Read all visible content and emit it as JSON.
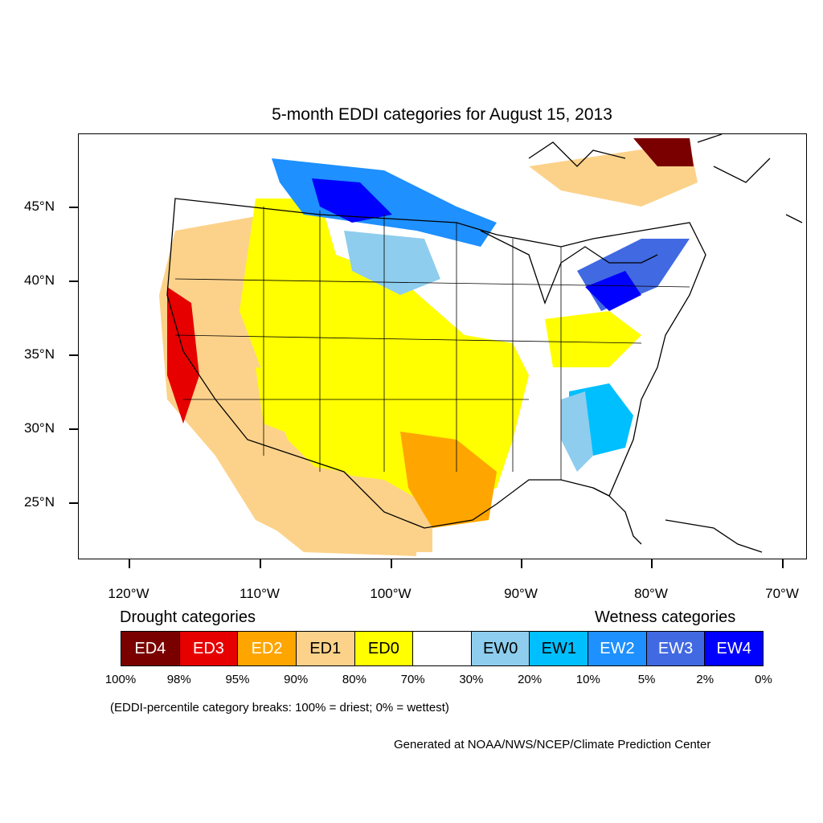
{
  "title": "5-month EDDI categories for August 15, 2013",
  "axes": {
    "lat_labels": [
      "45°N",
      "40°N",
      "35°N",
      "30°N",
      "25°N"
    ],
    "lon_labels": [
      "120°W",
      "110°W",
      "100°W",
      "90°W",
      "80°W",
      "70°W"
    ]
  },
  "legend": {
    "drought_header": "Drought categories",
    "wetness_header": "Wetness categories",
    "categories": [
      {
        "label": "ED4",
        "color": "#7a0000",
        "text_color": "#ffffff"
      },
      {
        "label": "ED3",
        "color": "#e60000",
        "text_color": "#ffffff"
      },
      {
        "label": "ED2",
        "color": "#ffa500",
        "text_color": "#ffffff"
      },
      {
        "label": "ED1",
        "color": "#fcd28a",
        "text_color": "#000000"
      },
      {
        "label": "ED0",
        "color": "#ffff00",
        "text_color": "#000000"
      },
      {
        "label": "",
        "color": "#ffffff",
        "text_color": "#000000"
      },
      {
        "label": "EW0",
        "color": "#8ecdee",
        "text_color": "#000000"
      },
      {
        "label": "EW1",
        "color": "#00bfff",
        "text_color": "#000000"
      },
      {
        "label": "EW2",
        "color": "#1e90ff",
        "text_color": "#ffffff"
      },
      {
        "label": "EW3",
        "color": "#4169e1",
        "text_color": "#ffffff"
      },
      {
        "label": "EW4",
        "color": "#0000ff",
        "text_color": "#ffffff"
      }
    ],
    "breaks": [
      "100%",
      "98%",
      "95%",
      "90%",
      "80%",
      "70%",
      "30%",
      "20%",
      "10%",
      "5%",
      "2%",
      "0%"
    ]
  },
  "note": "(EDDI-percentile category breaks: 100% = driest; 0% = wettest)",
  "credit": "Generated at NOAA/NWS/NCEP/Climate Prediction Center"
}
